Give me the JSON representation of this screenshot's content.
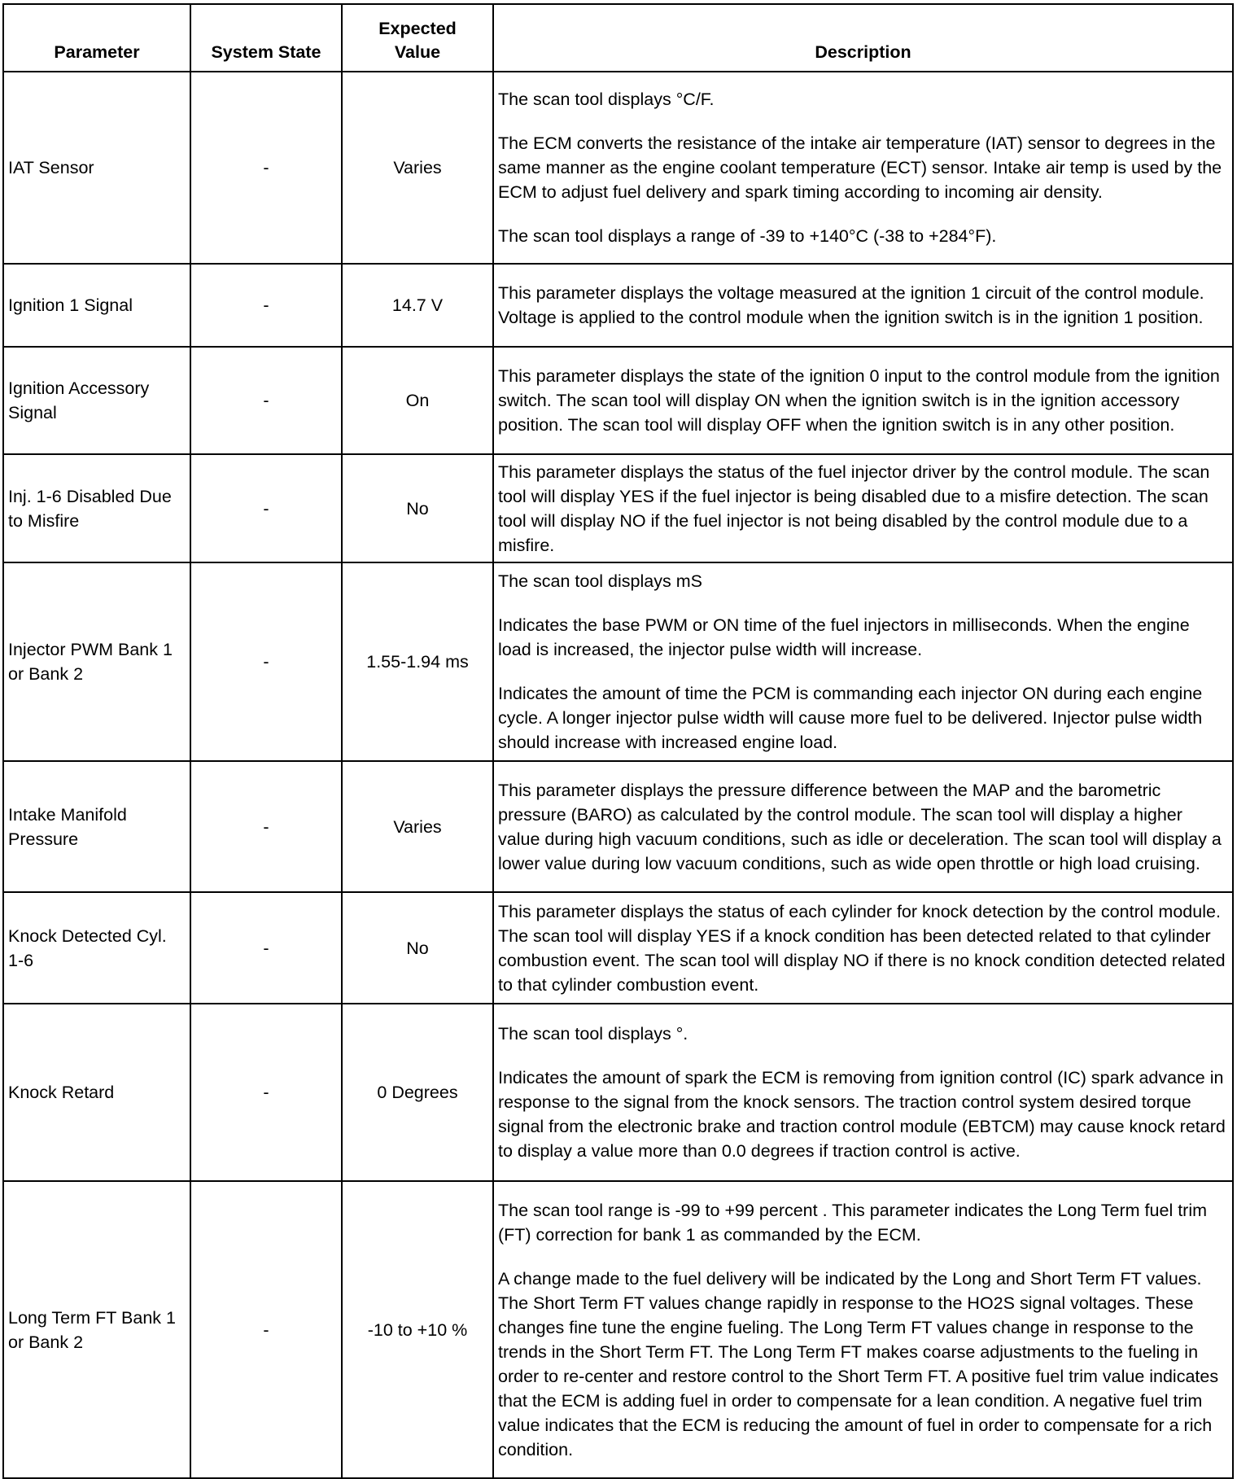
{
  "headers": [
    "Parameter",
    "System State",
    "Expected Value",
    "Description"
  ],
  "rows": [
    {
      "parameter": "IAT Sensor",
      "state": "-",
      "expected": "Varies",
      "description": [
        "The scan tool displays °C/F.",
        "The ECM converts the resistance of the intake air temperature (IAT) sensor to degrees in the same manner as the engine coolant temperature (ECT) sensor. Intake air temp is used by the ECM to adjust fuel delivery and spark timing according to incoming air density.",
        "The scan tool displays a range of -39 to +140°C (-38 to +284°F)."
      ]
    },
    {
      "parameter": "Ignition 1 Signal",
      "state": "-",
      "expected": "14.7 V",
      "description": [
        "This parameter displays the voltage measured at the ignition 1 circuit of the control module. Voltage is applied to the control module when the ignition switch is in the ignition 1 position."
      ]
    },
    {
      "parameter": "Ignition Accessory Signal",
      "state": "-",
      "expected": "On",
      "description": [
        "This parameter displays the state of the ignition 0 input to the control module from the ignition switch. The scan tool will display ON when the ignition switch is in the ignition accessory position. The scan tool will display OFF when the ignition switch is in any other position."
      ]
    },
    {
      "parameter": "Inj. 1-6 Disabled Due to Misfire",
      "state": "-",
      "expected": "No",
      "description": [
        "This parameter displays the status of the fuel injector driver by the control module. The scan tool will display YES if the fuel injector is being disabled due to a misfire detection. The scan tool will display NO if the fuel injector is not being disabled by the control module due to a misfire."
      ]
    },
    {
      "parameter": "Injector PWM Bank 1 or Bank 2",
      "state": "-",
      "expected": "1.55-1.94 ms",
      "description": [
        "The scan tool displays mS",
        "Indicates the base PWM or ON time of the fuel injectors in milliseconds. When the engine load is increased, the injector pulse width will increase.",
        "Indicates the amount of time the PCM is commanding each injector ON during each engine cycle. A longer injector pulse width will cause more fuel to be delivered. Injector pulse width should increase with increased engine load."
      ]
    },
    {
      "parameter": "Intake Manifold Pressure",
      "state": "-",
      "expected": "Varies",
      "description": [
        "This parameter displays the pressure difference between the MAP and the barometric pressure (BARO) as calculated by the control module. The scan tool will display a higher value during high vacuum conditions, such as idle or deceleration. The scan tool will display a lower value during low vacuum conditions, such as wide open throttle or high load cruising."
      ]
    },
    {
      "parameter": "Knock Detected Cyl. 1-6",
      "state": "-",
      "expected": "No",
      "description": [
        "This parameter displays the status of each cylinder for knock detection by the control module. The scan tool will display YES if a knock condition has been detected related to that cylinder combustion event. The scan tool will display NO if there is no knock condition detected related to that cylinder combustion event."
      ]
    },
    {
      "parameter": "Knock Retard",
      "state": "-",
      "expected": "0 Degrees",
      "description": [
        "The scan tool displays °.",
        "Indicates the amount of spark the ECM is removing from ignition control (IC) spark advance in response to the signal from the knock sensors. The traction control system desired torque signal from the electronic brake and traction control module (EBTCM) may cause knock retard to display a value more than 0.0 degrees if traction control is active."
      ]
    },
    {
      "parameter": "Long Term FT Bank 1 or Bank 2",
      "state": "-",
      "expected": "-10 to +10 %",
      "description": [
        "The scan tool range is -99 to +99 percent . This parameter indicates the Long Term fuel trim (FT) correction for bank 1 as commanded by the ECM.",
        "A change made to the fuel delivery will be indicated by the Long and Short Term FT values. The Short Term FT values change rapidly in response to the HO2S signal voltages. These changes fine tune the engine fueling. The Long Term FT values change in response to the trends in the Short Term FT. The Long Term FT makes coarse adjustments to the fueling in order to re-center and restore control to the Short Term FT. A positive fuel trim value indicates that the ECM is adding fuel in order to compensate for a lean condition. A negative fuel trim value indicates that the ECM is reducing the amount of fuel in order to compensate for a rich condition."
      ]
    }
  ]
}
